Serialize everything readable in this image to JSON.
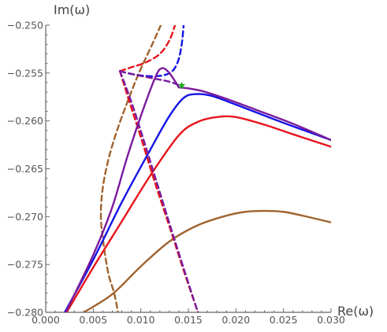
{
  "chart_data": {
    "type": "line",
    "xlabel": "Re(ω)",
    "ylabel": "Im(ω)",
    "xlim": [
      0.0,
      0.03
    ],
    "ylim": [
      -0.28,
      -0.25
    ],
    "x_ticks": [
      {
        "value": 0.0,
        "label": "0.000"
      },
      {
        "value": 0.005,
        "label": "0.005"
      },
      {
        "value": 0.01,
        "label": "0.010"
      },
      {
        "value": 0.015,
        "label": "0.015"
      },
      {
        "value": 0.02,
        "label": "0.020"
      },
      {
        "value": 0.025,
        "label": "0.025"
      },
      {
        "value": 0.03,
        "label": "0.030"
      }
    ],
    "y_ticks": [
      {
        "value": -0.25,
        "label": "−0.250"
      },
      {
        "value": -0.255,
        "label": "−0.255"
      },
      {
        "value": -0.26,
        "label": "−0.260"
      },
      {
        "value": -0.265,
        "label": "−0.265"
      },
      {
        "value": -0.27,
        "label": "−0.270"
      },
      {
        "value": -0.275,
        "label": "−0.275"
      },
      {
        "value": -0.28,
        "label": "−0.280"
      }
    ],
    "grid": false,
    "series": [
      {
        "color": "#a0632f",
        "style": "dashed",
        "points": [
          [
            0.0121,
            -0.25
          ],
          [
            0.0112,
            -0.252
          ],
          [
            0.0098,
            -0.255
          ],
          [
            0.0086,
            -0.258
          ],
          [
            0.0075,
            -0.261
          ],
          [
            0.0066,
            -0.264
          ],
          [
            0.006,
            -0.267
          ],
          [
            0.0058,
            -0.27
          ],
          [
            0.0061,
            -0.273
          ],
          [
            0.0066,
            -0.276
          ],
          [
            0.0072,
            -0.278
          ],
          [
            0.0076,
            -0.28
          ]
        ]
      },
      {
        "color": "#a0632f",
        "style": "solid",
        "points": [
          [
            0.004,
            -0.28
          ],
          [
            0.007,
            -0.2781
          ],
          [
            0.01,
            -0.2752
          ],
          [
            0.013,
            -0.2726
          ],
          [
            0.016,
            -0.2709
          ],
          [
            0.019,
            -0.2699
          ],
          [
            0.021,
            -0.2695
          ],
          [
            0.023,
            -0.2694
          ],
          [
            0.025,
            -0.2695
          ],
          [
            0.027,
            -0.2699
          ],
          [
            0.03,
            -0.2706
          ]
        ]
      },
      {
        "color": "#e8141c",
        "style": "solid",
        "points": [
          [
            0.0022,
            -0.28
          ],
          [
            0.005,
            -0.2753
          ],
          [
            0.008,
            -0.2705
          ],
          [
            0.011,
            -0.2657
          ],
          [
            0.014,
            -0.2615
          ],
          [
            0.016,
            -0.2601
          ],
          [
            0.018,
            -0.2596
          ],
          [
            0.02,
            -0.2596
          ],
          [
            0.023,
            -0.2604
          ],
          [
            0.026,
            -0.2614
          ],
          [
            0.03,
            -0.2627
          ]
        ]
      },
      {
        "color": "#e8141c",
        "style": "dashed",
        "points": [
          [
            0.0078,
            -0.2548
          ],
          [
            0.0088,
            -0.258
          ],
          [
            0.01,
            -0.2617
          ],
          [
            0.0115,
            -0.2665
          ],
          [
            0.013,
            -0.271
          ],
          [
            0.0145,
            -0.2756
          ],
          [
            0.016,
            -0.28
          ]
        ]
      },
      {
        "color": "#e8141c",
        "style": "dashed",
        "points": [
          [
            0.0078,
            -0.2548
          ],
          [
            0.009,
            -0.2544
          ],
          [
            0.0105,
            -0.2539
          ],
          [
            0.012,
            -0.253
          ],
          [
            0.013,
            -0.2516
          ],
          [
            0.0136,
            -0.25
          ]
        ]
      },
      {
        "color": "#1414e6",
        "style": "solid",
        "points": [
          [
            0.002,
            -0.28
          ],
          [
            0.005,
            -0.2745
          ],
          [
            0.008,
            -0.2685
          ],
          [
            0.011,
            -0.263
          ],
          [
            0.013,
            -0.2595
          ],
          [
            0.0145,
            -0.2576
          ],
          [
            0.0158,
            -0.2572
          ],
          [
            0.0175,
            -0.2574
          ],
          [
            0.02,
            -0.2583
          ],
          [
            0.025,
            -0.2602
          ],
          [
            0.03,
            -0.262
          ]
        ]
      },
      {
        "color": "#1414e6",
        "style": "dashed",
        "points": [
          [
            0.0078,
            -0.2548
          ],
          [
            0.009,
            -0.2551
          ],
          [
            0.0105,
            -0.2553
          ],
          [
            0.012,
            -0.2553
          ],
          [
            0.0132,
            -0.2549
          ],
          [
            0.0139,
            -0.2538
          ],
          [
            0.0143,
            -0.252
          ],
          [
            0.0145,
            -0.25
          ]
        ]
      },
      {
        "color": "#7a1a9e",
        "style": "solid",
        "points": [
          [
            0.0021,
            -0.28
          ],
          [
            0.005,
            -0.274
          ],
          [
            0.007,
            -0.269
          ],
          [
            0.0085,
            -0.264
          ],
          [
            0.01,
            -0.2595
          ],
          [
            0.0115,
            -0.2555
          ],
          [
            0.0122,
            -0.2545
          ],
          [
            0.013,
            -0.255
          ],
          [
            0.014,
            -0.2565
          ]
        ]
      },
      {
        "color": "#7a1a9e",
        "style": "solid",
        "points": [
          [
            0.014,
            -0.2565
          ],
          [
            0.015,
            -0.2566
          ],
          [
            0.0165,
            -0.2569
          ],
          [
            0.019,
            -0.2577
          ],
          [
            0.022,
            -0.2588
          ],
          [
            0.026,
            -0.2603
          ],
          [
            0.03,
            -0.262
          ]
        ]
      },
      {
        "color": "#7a1a9e",
        "style": "dashed",
        "points": [
          [
            0.0078,
            -0.2548
          ],
          [
            0.0095,
            -0.2552
          ],
          [
            0.0115,
            -0.2556
          ],
          [
            0.013,
            -0.2559
          ],
          [
            0.0141,
            -0.2563
          ]
        ]
      },
      {
        "color": "#7a1a9e",
        "style": "dashed",
        "points": [
          [
            0.0078,
            -0.2548
          ],
          [
            0.009,
            -0.258
          ],
          [
            0.0102,
            -0.2617
          ],
          [
            0.0117,
            -0.2665
          ],
          [
            0.0131,
            -0.271
          ],
          [
            0.0146,
            -0.2757
          ],
          [
            0.016,
            -0.28
          ]
        ]
      }
    ],
    "markers": [
      {
        "shape": "star",
        "color": "#22aa22",
        "x": 0.0143,
        "y": -0.2563
      }
    ]
  }
}
